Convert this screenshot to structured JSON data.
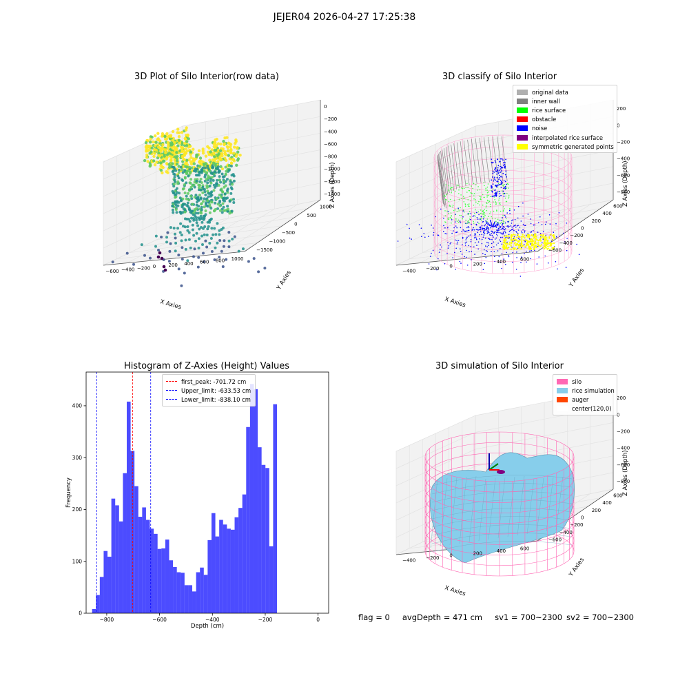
{
  "figure": {
    "suptitle": "JEJER04 2026-04-27 17:25:38"
  },
  "panels": {
    "raw": {
      "title": "3D Plot of Silo Interior(row data)",
      "xlabel": "X Axies",
      "ylabel": "Y Axies",
      "zlabel": "Z Axies (Depth)",
      "xticks": [
        "−600",
        "−400",
        "−200",
        "0",
        "200",
        "400",
        "600",
        "800",
        "1000"
      ],
      "yticks": [
        "1000",
        "500",
        "0",
        "−500",
        "−1000",
        "−1500"
      ],
      "zticks": [
        "0",
        "−200",
        "−400",
        "−600",
        "−800",
        "−1000",
        "−1200",
        "−1400"
      ],
      "colormap": [
        "#440154",
        "#3b528b",
        "#21918c",
        "#5ec962",
        "#fde725"
      ]
    },
    "classify": {
      "title": "3D classify of Silo Interior",
      "xlabel": "X Axies",
      "ylabel": "Y Axies",
      "zlabel": "Z Axies (Depth)",
      "xticks": [
        "−400",
        "−200",
        "0",
        "200",
        "400",
        "600"
      ],
      "yticks": [
        "600",
        "400",
        "200",
        "0",
        "−200",
        "−400",
        "−600"
      ],
      "zticks": [
        "200",
        "0",
        "−200",
        "−400",
        "−600",
        "−800"
      ],
      "legend": [
        {
          "label": "original data",
          "color": "#b0b0b0"
        },
        {
          "label": "inner wall",
          "color": "#808080"
        },
        {
          "label": "rice surface",
          "color": "#00ff00"
        },
        {
          "label": "obstacle",
          "color": "#ff0000"
        },
        {
          "label": "noise",
          "color": "#0000ff"
        },
        {
          "label": "interpolated rice surface",
          "color": "#800080"
        },
        {
          "label": "symmetric generated points",
          "color": "#ffff00"
        }
      ]
    },
    "simulation": {
      "title": "3D simulation of Silo Interior",
      "xlabel": "X Axies",
      "ylabel": "Y Axies",
      "zlabel": "Z Axies (Depth)",
      "xticks": [
        "−400",
        "−200",
        "0",
        "200",
        "400",
        "600"
      ],
      "yticks": [
        "600",
        "400",
        "200",
        "0",
        "−200",
        "−400",
        "−600"
      ],
      "zticks": [
        "200",
        "0",
        "−200",
        "−400",
        "−600",
        "−800"
      ],
      "legend": [
        {
          "label": "silo",
          "color": "#ff69b4"
        },
        {
          "label": "rice simulation",
          "color": "#87ceeb"
        },
        {
          "label": "auger",
          "color": "#ff4500"
        },
        {
          "label": "center(120,0)",
          "color": "#ffffff"
        }
      ]
    }
  },
  "status": {
    "flag": "flag = 0",
    "avg_depth": "avgDepth = 471 cm",
    "sv1": "sv1 = 700~2300",
    "sv2": "sv2 = 700~2300"
  },
  "chart_data": {
    "type": "bar",
    "title": "Histogram of Z-Axies (Height) Values",
    "xlabel": "Depth (cm)",
    "ylabel": "Frequency",
    "xlim": [
      -878,
      40
    ],
    "ylim": [
      0,
      465
    ],
    "xticks": [
      -800,
      -600,
      -400,
      -200,
      0
    ],
    "xtick_labels": [
      "−800",
      "−600",
      "−400",
      "−200",
      "0"
    ],
    "yticks": [
      0,
      100,
      200,
      300,
      400
    ],
    "bar_color": "#0000ff",
    "bar_alpha": 0.7,
    "bin_start": -855.4,
    "bin_width": 14.58,
    "values": [
      8,
      35,
      70,
      120,
      109,
      221,
      208,
      177,
      270,
      408,
      313,
      245,
      186,
      204,
      180,
      163,
      153,
      124,
      125,
      142,
      102,
      89,
      79,
      78,
      54,
      54,
      42,
      79,
      88,
      74,
      141,
      193,
      148,
      180,
      171,
      163,
      161,
      185,
      203,
      229,
      359,
      442,
      432,
      320,
      286,
      280,
      129,
      403
    ],
    "vlines": [
      {
        "x": -701.72,
        "color": "red",
        "label": "first_peak: -701.72 cm"
      },
      {
        "x": -633.53,
        "color": "blue",
        "label": "Upper_limit: -633.53 cm"
      },
      {
        "x": -838.1,
        "color": "blue",
        "label": "Lower_limit: -838.10 cm"
      }
    ],
    "legend_position": "top-center"
  }
}
